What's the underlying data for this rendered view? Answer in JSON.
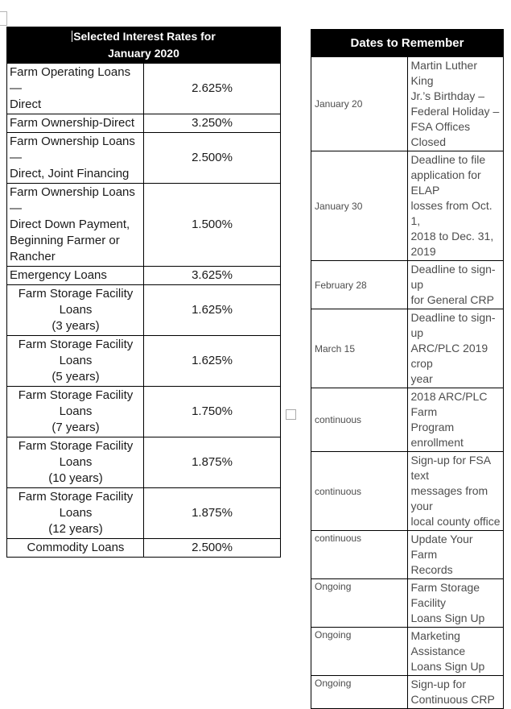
{
  "colors": {
    "header_bg": "#000000",
    "header_text": "#ffffff",
    "rates_text": "#1a1a1a",
    "dates_text": "#4d4d4d"
  },
  "interest_table": {
    "header_lines": [
      "Selected Interest Rates for",
      "January 2020"
    ],
    "rows": [
      {
        "label": [
          "Farm Operating Loans —",
          "Direct"
        ],
        "rate": "2.625%"
      },
      {
        "label": [
          "Farm Ownership-Direct"
        ],
        "rate": "3.250%"
      },
      {
        "label": [
          "Farm Ownership Loans —",
          "Direct, Joint Financing"
        ],
        "rate": "2.500%"
      },
      {
        "label": [
          "Farm Ownership Loans —",
          "Direct Down Payment,",
          "Beginning Farmer or Rancher"
        ],
        "rate": "1.500%"
      },
      {
        "label": [
          "Emergency Loans"
        ],
        "rate": "3.625%"
      },
      {
        "label": [
          "Farm Storage Facility Loans",
          "(3 years)"
        ],
        "rate": "1.625%"
      },
      {
        "label": [
          "Farm Storage Facility Loans",
          "(5 years)"
        ],
        "rate": "1.625%"
      },
      {
        "label": [
          "Farm Storage Facility Loans",
          "(7 years)"
        ],
        "rate": "1.750%"
      },
      {
        "label": [
          "Farm Storage Facility Loans",
          "(10 years)"
        ],
        "rate": "1.875%"
      },
      {
        "label": [
          "Farm Storage Facility Loans",
          "(12 years)"
        ],
        "rate": "1.875%"
      },
      {
        "label": [
          "Commodity Loans"
        ],
        "rate": "2.500%"
      }
    ]
  },
  "dates_table": {
    "header": "Dates to Remember",
    "rows": [
      {
        "date": "January 20",
        "description": [
          "Martin Luther King",
          "Jr.’s Birthday –",
          "Federal Holiday –",
          "FSA Offices Closed"
        ]
      },
      {
        "date": "January 30",
        "description": [
          "Deadline to file",
          "application for ELAP",
          "losses from Oct. 1,",
          "2018 to Dec. 31, 2019"
        ]
      },
      {
        "date": "February 28",
        "description": [
          "Deadline to sign-up",
          "for General CRP"
        ]
      },
      {
        "date": "March 15",
        "description": [
          "Deadline to sign-up",
          "ARC/PLC 2019 crop",
          "year"
        ]
      },
      {
        "date": "continuous",
        "description": [
          "2018 ARC/PLC Farm",
          "Program enrollment"
        ]
      },
      {
        "date": "continuous",
        "description": [
          "Sign-up for FSA text",
          "messages from your",
          "local county office"
        ]
      },
      {
        "date": "continuous",
        "description": [
          "Update Your Farm",
          "Records"
        ]
      },
      {
        "date": "Ongoing",
        "description": [
          "Farm Storage Facility",
          "Loans Sign Up"
        ]
      },
      {
        "date": "Ongoing",
        "description": [
          "Marketing Assistance",
          "Loans Sign Up"
        ]
      },
      {
        "date": "Ongoing",
        "description": [
          "Sign-up for",
          "Continuous CRP"
        ]
      }
    ]
  }
}
